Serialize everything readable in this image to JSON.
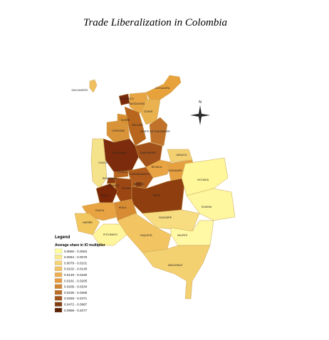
{
  "title": "Trade Liberalization in Colombia",
  "regions": [
    {
      "label": "SAN ANDRES",
      "color": "#f0c060"
    },
    {
      "label": "LA GUAJIRA",
      "color": "#e8a23c"
    },
    {
      "label": "ATLANTICO",
      "color": "#7a2a0a"
    },
    {
      "label": "MAGDALENA",
      "color": "#e7a544"
    },
    {
      "label": "CESAR",
      "color": "#e9b24f"
    },
    {
      "label": "BOLIVAR",
      "color": "#b8651e"
    },
    {
      "label": "SUCRE",
      "color": "#d88f30"
    },
    {
      "label": "CORDOBA",
      "color": "#d9943a"
    },
    {
      "label": "NORTE DE SANTANDER",
      "color": "#c0722a"
    },
    {
      "label": "ANTIOQUIA",
      "color": "#7c2c0c"
    },
    {
      "label": "SANTANDER",
      "color": "#a3511a"
    },
    {
      "label": "ARAUCA",
      "color": "#f3d070"
    },
    {
      "label": "CHOCO",
      "color": "#f5e38b"
    },
    {
      "label": "BOYACA",
      "color": "#e9a444"
    },
    {
      "label": "CASANARE",
      "color": "#e6a040"
    },
    {
      "label": "CALDAS",
      "color": "#b9641f"
    },
    {
      "label": "RISARALDA",
      "color": "#8a3a0c"
    },
    {
      "label": "QUINDIO",
      "color": "#e4a03f"
    },
    {
      "label": "CUNDINAMARCA",
      "color": "#b05a1c"
    },
    {
      "label": "BOGOTA",
      "color": "#8f3e10"
    },
    {
      "label": "TOLIMA",
      "color": "#9c4614"
    },
    {
      "label": "VALLE",
      "color": "#7a2808"
    },
    {
      "label": "META",
      "color": "#8f3e10"
    },
    {
      "label": "VICHADA",
      "color": "#fff799"
    },
    {
      "label": "CAUCA",
      "color": "#e8a443"
    },
    {
      "label": "HUILA",
      "color": "#d78c33"
    },
    {
      "label": "NARIÑO",
      "color": "#f2c760"
    },
    {
      "label": "GUAINIA",
      "color": "#fff7a0"
    },
    {
      "label": "GUAVIARE",
      "color": "#f7dd80"
    },
    {
      "label": "PUTUMAYO",
      "color": "#fff59c"
    },
    {
      "label": "CAQUETA",
      "color": "#f2c462"
    },
    {
      "label": "VAUPES",
      "color": "#fff8a5"
    },
    {
      "label": "AMAZONAS",
      "color": "#f3d070"
    }
  ],
  "legend": {
    "heading": "Legend",
    "subtitle": "Average share in IO multiplier",
    "items": [
      {
        "label": "0.0056 - 0.0063",
        "color": "#ffff9e"
      },
      {
        "label": "0.0064 - 0.0078",
        "color": "#fbe98a"
      },
      {
        "label": "0.0079 - 0.0101",
        "color": "#f6d575"
      },
      {
        "label": "0.0102 - 0.0148",
        "color": "#f2c262"
      },
      {
        "label": "0.0149 - 0.0180",
        "color": "#edae50"
      },
      {
        "label": "0.0181 - 0.0205",
        "color": "#e59a3f"
      },
      {
        "label": "0.0206 - 0.0234",
        "color": "#d38532"
      },
      {
        "label": "0.0235 - 0.0268",
        "color": "#bb6d25"
      },
      {
        "label": "0.0269 - 0.0471",
        "color": "#a0541a"
      },
      {
        "label": "0.0472 - 0.0987",
        "color": "#823d10"
      },
      {
        "label": "0.0988 - 0.2077",
        "color": "#5e2306"
      }
    ]
  }
}
